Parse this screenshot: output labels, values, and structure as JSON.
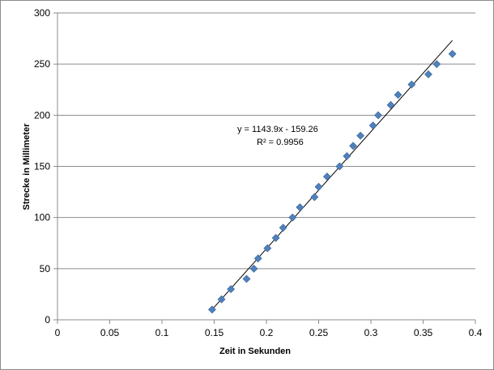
{
  "chart_data": {
    "type": "scatter",
    "title": "",
    "xlabel": "Zeit in Sekunden",
    "ylabel": "Strecke in Millimeter",
    "xlim": [
      0,
      0.4
    ],
    "ylim": [
      0,
      300
    ],
    "xticks": [
      0,
      0.05,
      0.1,
      0.15,
      0.2,
      0.25,
      0.3,
      0.35,
      0.4
    ],
    "xtick_labels": [
      "0",
      "0.05",
      "0.1",
      "0.15",
      "0.2",
      "0.25",
      "0.3",
      "0.35",
      "0.4"
    ],
    "yticks": [
      0,
      50,
      100,
      150,
      200,
      250,
      300
    ],
    "ytick_labels": [
      "0",
      "50",
      "100",
      "150",
      "200",
      "250",
      "300"
    ],
    "grid": "horizontal",
    "legend": "none",
    "marker": "diamond",
    "marker_color": "#4f81bd",
    "series": [
      {
        "points": [
          [
            0.148,
            10
          ],
          [
            0.157,
            20
          ],
          [
            0.166,
            30
          ],
          [
            0.181,
            40
          ],
          [
            0.188,
            50
          ],
          [
            0.192,
            60
          ],
          [
            0.201,
            70
          ],
          [
            0.209,
            80
          ],
          [
            0.216,
            90
          ],
          [
            0.225,
            100
          ],
          [
            0.232,
            110
          ],
          [
            0.246,
            120
          ],
          [
            0.25,
            130
          ],
          [
            0.258,
            140
          ],
          [
            0.27,
            150
          ],
          [
            0.277,
            160
          ],
          [
            0.283,
            170
          ],
          [
            0.29,
            180
          ],
          [
            0.302,
            190
          ],
          [
            0.307,
            200
          ],
          [
            0.319,
            210
          ],
          [
            0.326,
            220
          ],
          [
            0.339,
            230
          ],
          [
            0.355,
            240
          ],
          [
            0.363,
            250
          ],
          [
            0.378,
            260
          ]
        ]
      }
    ],
    "trendline": {
      "slope": 1143.9,
      "intercept": -159.26,
      "x_range": [
        0.148,
        0.378
      ],
      "color": "#000000",
      "equation_label": "y = 1143.9x - 159.26",
      "r2_label": "R² = 0.9956"
    }
  }
}
